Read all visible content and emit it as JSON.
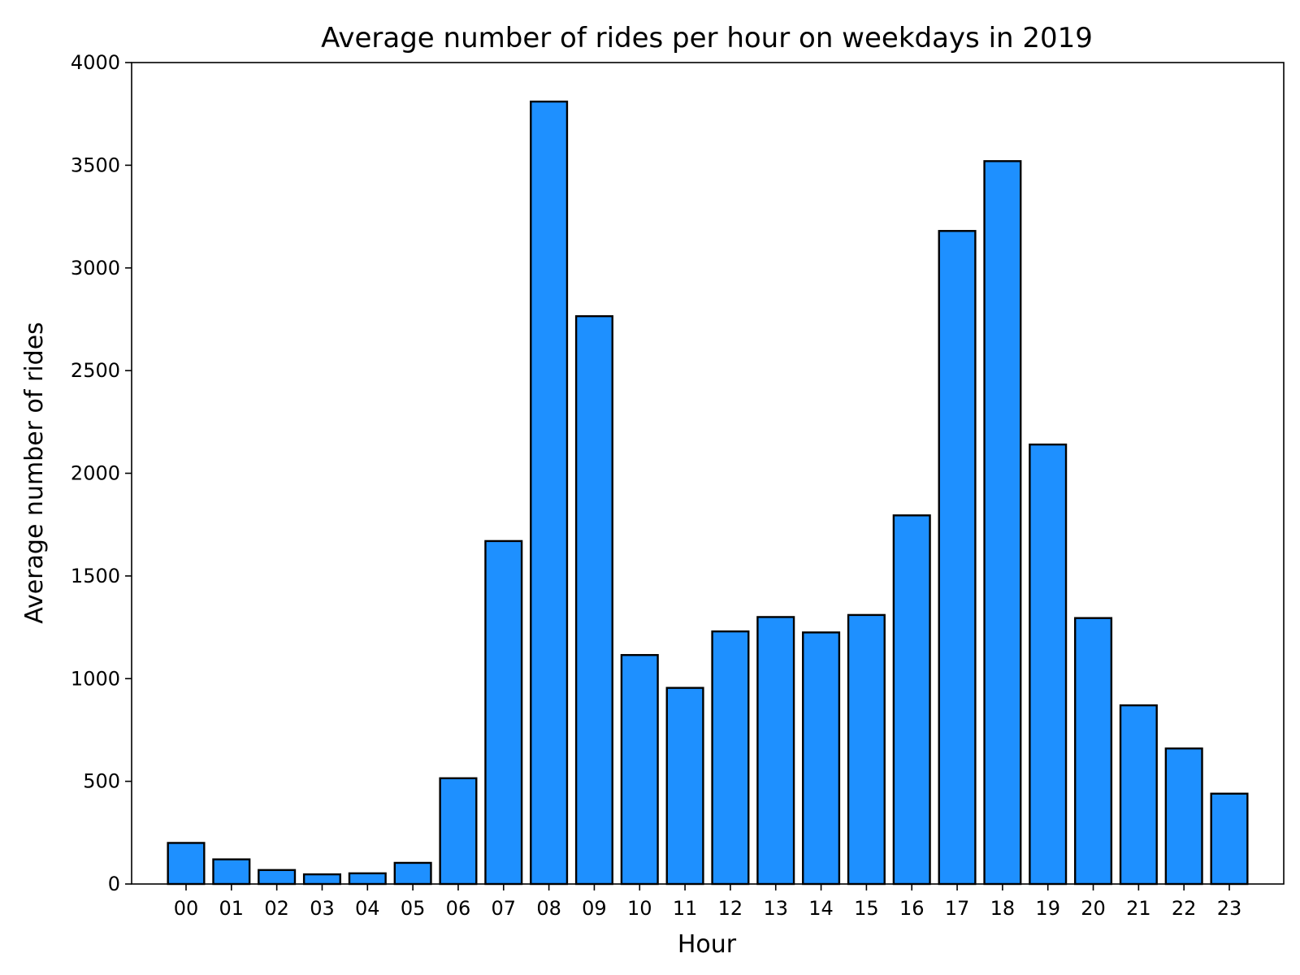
{
  "chart_data": {
    "type": "bar",
    "title": "Average number of rides per hour on weekdays in 2019",
    "xlabel": "Hour",
    "ylabel": "Average number of rides",
    "categories": [
      "00",
      "01",
      "02",
      "03",
      "04",
      "05",
      "06",
      "07",
      "08",
      "09",
      "10",
      "11",
      "12",
      "13",
      "14",
      "15",
      "16",
      "17",
      "18",
      "19",
      "20",
      "21",
      "22",
      "23"
    ],
    "values": [
      200,
      120,
      68,
      47,
      52,
      103,
      515,
      1670,
      3810,
      2765,
      1115,
      955,
      1230,
      1300,
      1225,
      1310,
      1795,
      3180,
      3520,
      2140,
      1295,
      870,
      660,
      440
    ],
    "ylim": [
      0,
      4000
    ],
    "yticks": [
      0,
      500,
      1000,
      1500,
      2000,
      2500,
      3000,
      3500,
      4000
    ],
    "bar_color": "#1e90ff",
    "edge_color": "#000000",
    "grid": false,
    "legend": false
  }
}
